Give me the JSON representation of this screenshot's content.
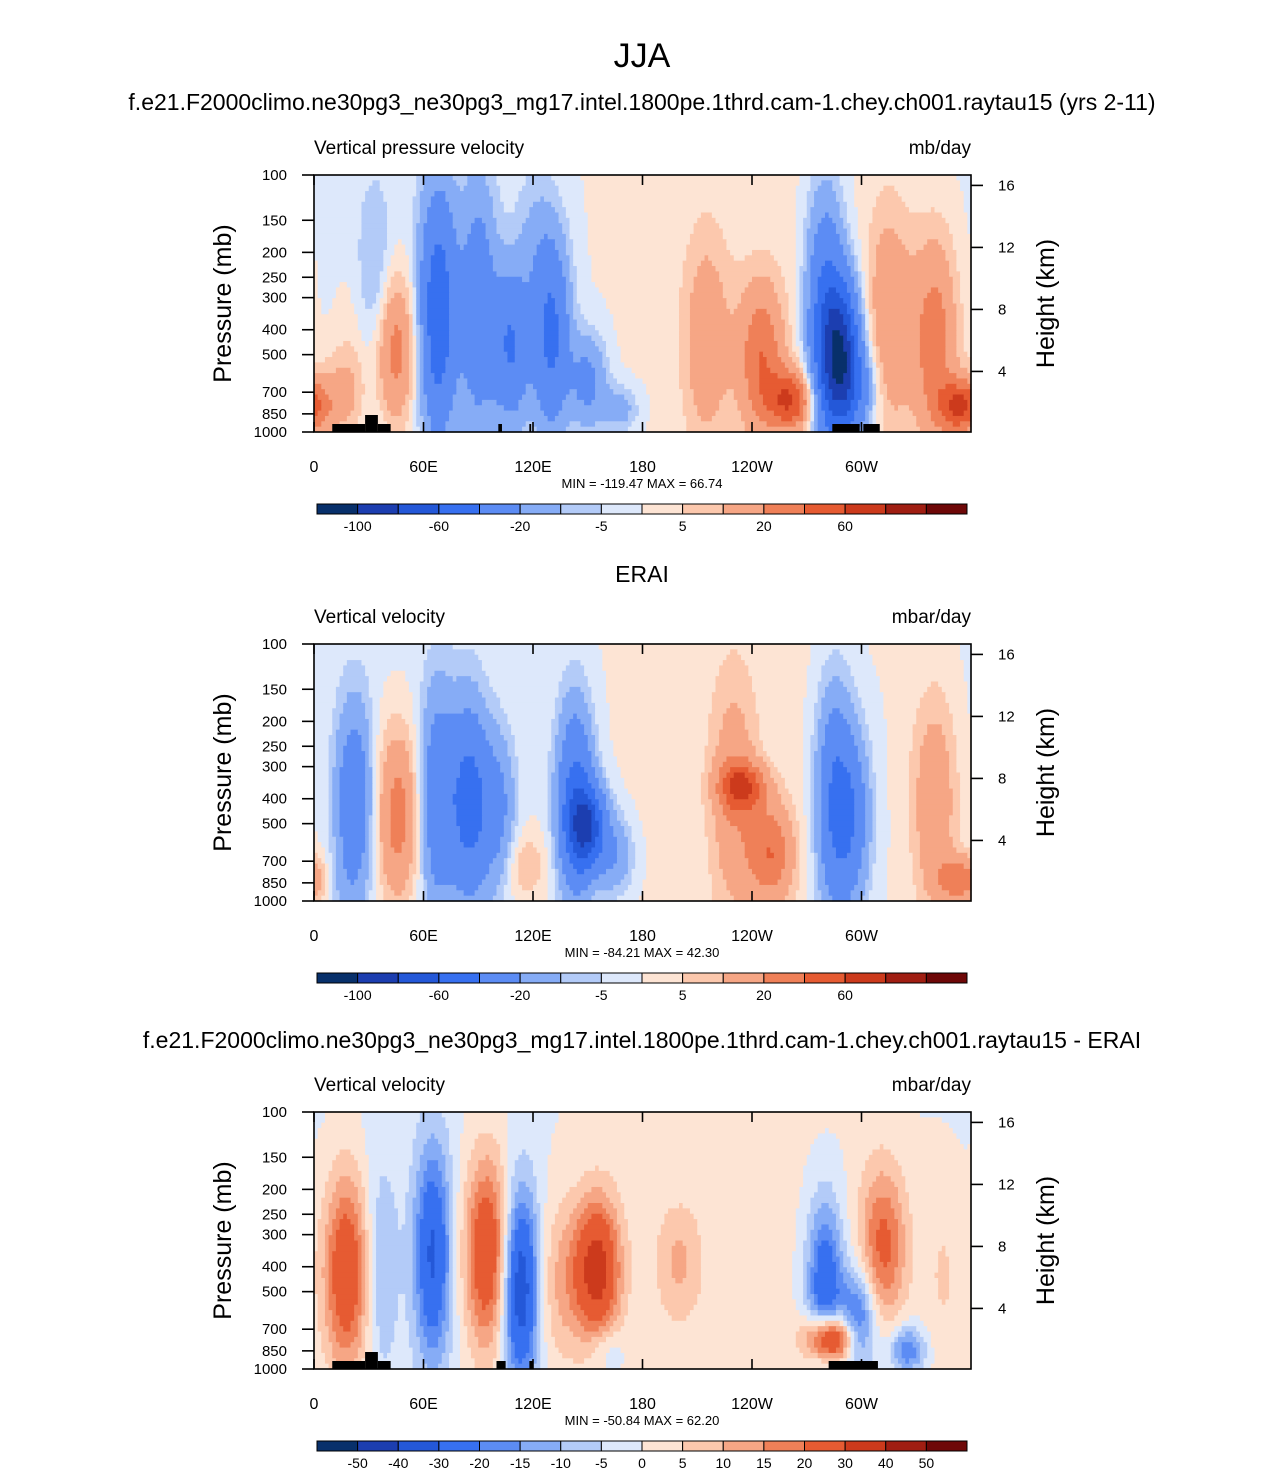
{
  "figure": {
    "season": "JJA",
    "panel_titles": [
      "f.e21.F2000climo.ne30pg3_ne30pg3_mg17.intel.1800pe.1thrd.cam-1.chey.ch001.raytau15 (yrs 2-11)",
      "ERAI",
      "f.e21.F2000climo.ne30pg3_ne30pg3_mg17.intel.1800pe.1thrd.cam-1.chey.ch001.raytau15 - ERAI"
    ]
  },
  "chart_data": [
    {
      "type": "heatmap",
      "title": "f.e21.F2000climo.ne30pg3_ne30pg3_mg17.intel.1800pe.1thrd.cam-1.chey.ch001.raytau15 (yrs 2-11)",
      "left_label": "Vertical pressure velocity",
      "right_label": "mb/day",
      "ylabel": "Pressure (mb)",
      "ylabel_right": "Height (km)",
      "x_ticks": [
        "0",
        "60E",
        "120E",
        "180",
        "120W",
        "60W"
      ],
      "y_ticks": [
        "100",
        "150",
        "200",
        "250",
        "300",
        "400",
        "500",
        "700",
        "850",
        "1000"
      ],
      "y_right_ticks": [
        "16",
        "12",
        "8",
        "4"
      ],
      "xlim": [
        0,
        360
      ],
      "ylim": [
        1000,
        100
      ],
      "yscale": "log",
      "stats": "MIN = -119.47  MAX =  66.74",
      "colorbar_labels": [
        "-100",
        "-60",
        "-20",
        "-5",
        "5",
        "20",
        "60"
      ],
      "colorbar_label_positions": [
        1,
        3,
        5,
        7,
        9,
        11,
        13
      ],
      "colorbar_colors": [
        "#08306b",
        "#1c3eb0",
        "#2458d8",
        "#3770f0",
        "#5c8cf4",
        "#86acf6",
        "#b3cbf8",
        "#dde8fb",
        "#fde4d4",
        "#fcc8ad",
        "#f6a685",
        "#ef8058",
        "#e65b32",
        "#cc3a1c",
        "#a01e12",
        "#6e0808"
      ],
      "colorbar_bounds": [
        -100,
        -80,
        -60,
        -40,
        -20,
        -10,
        -5,
        0,
        5,
        10,
        20,
        30,
        40,
        50,
        60
      ],
      "features": [
        {
          "lon": 15,
          "p_top": 500,
          "p_bot": 1000,
          "value": 12
        },
        {
          "lon": 28,
          "p_top": 230,
          "p_bot": 900,
          "value": 8
        },
        {
          "lon": 33,
          "p_top": 160,
          "p_bot": 820,
          "value": -20
        },
        {
          "lon": 43,
          "p_top": 270,
          "p_bot": 850,
          "value": 28
        },
        {
          "lon": 68,
          "p_top": 140,
          "p_bot": 850,
          "value": -55
        },
        {
          "lon": 90,
          "p_top": 130,
          "p_bot": 850,
          "value": -32
        },
        {
          "lon": 108,
          "p_top": 260,
          "p_bot": 820,
          "value": -40
        },
        {
          "lon": 130,
          "p_top": 200,
          "p_bot": 850,
          "value": -45
        },
        {
          "lon": 150,
          "p_top": 450,
          "p_bot": 900,
          "value": -25
        },
        {
          "lon": 168,
          "p_top": 700,
          "p_bot": 950,
          "value": -14
        },
        {
          "lon": 215,
          "p_top": 200,
          "p_bot": 950,
          "value": 16
        },
        {
          "lon": 245,
          "p_top": 290,
          "p_bot": 920,
          "value": 28
        },
        {
          "lon": 262,
          "p_top": 600,
          "p_bot": 950,
          "value": 38
        },
        {
          "lon": 280,
          "p_top": 150,
          "p_bot": 950,
          "value": -45
        },
        {
          "lon": 289,
          "p_top": 300,
          "p_bot": 900,
          "value": -90
        },
        {
          "lon": 300,
          "p_top": 500,
          "p_bot": 950,
          "value": -20
        },
        {
          "lon": 315,
          "p_top": 150,
          "p_bot": 900,
          "value": 18
        },
        {
          "lon": 340,
          "p_top": 200,
          "p_bot": 950,
          "value": 26
        },
        {
          "lon": 355,
          "p_top": 650,
          "p_bot": 980,
          "value": 40
        },
        {
          "lon": 120,
          "p_top": 100,
          "p_bot": 300,
          "value": -8
        }
      ],
      "topography": [
        [
          10,
          28
        ],
        [
          28,
          35
        ],
        [
          35,
          42
        ],
        [
          101,
          103
        ],
        [
          118,
          119
        ],
        [
          284,
          299
        ],
        [
          301,
          310
        ]
      ]
    },
    {
      "type": "heatmap",
      "title": "ERAI",
      "left_label": "Vertical velocity",
      "right_label": "mbar/day",
      "ylabel": "Pressure (mb)",
      "ylabel_right": "Height (km)",
      "x_ticks": [
        "0",
        "60E",
        "120E",
        "180",
        "120W",
        "60W"
      ],
      "y_ticks": [
        "100",
        "150",
        "200",
        "250",
        "300",
        "400",
        "500",
        "700",
        "850",
        "1000"
      ],
      "y_right_ticks": [
        "16",
        "12",
        "8",
        "4"
      ],
      "xlim": [
        0,
        360
      ],
      "ylim": [
        1000,
        100
      ],
      "yscale": "log",
      "stats": "MIN = -84.21  MAX =  42.30",
      "colorbar_labels": [
        "-100",
        "-60",
        "-20",
        "-5",
        "5",
        "20",
        "60"
      ],
      "colorbar_label_positions": [
        1,
        3,
        5,
        7,
        9,
        11,
        13
      ],
      "colorbar_colors": [
        "#08306b",
        "#1c3eb0",
        "#2458d8",
        "#3770f0",
        "#5c8cf4",
        "#86acf6",
        "#b3cbf8",
        "#dde8fb",
        "#fde4d4",
        "#fcc8ad",
        "#f6a685",
        "#ef8058",
        "#e65b32",
        "#cc3a1c",
        "#a01e12",
        "#6e0808"
      ],
      "colorbar_bounds": [
        -100,
        -80,
        -60,
        -40,
        -20,
        -10,
        -5,
        0,
        5,
        10,
        20,
        30,
        40,
        50,
        60
      ],
      "features": [
        {
          "lon": 22,
          "p_top": 200,
          "p_bot": 850,
          "value": -35
        },
        {
          "lon": 12,
          "p_top": 700,
          "p_bot": 1000,
          "value": -6
        },
        {
          "lon": 46,
          "p_top": 240,
          "p_bot": 900,
          "value": 26
        },
        {
          "lon": 68,
          "p_top": 180,
          "p_bot": 900,
          "value": -35
        },
        {
          "lon": 85,
          "p_top": 200,
          "p_bot": 850,
          "value": -45
        },
        {
          "lon": 100,
          "p_top": 250,
          "p_bot": 800,
          "value": -25
        },
        {
          "lon": 115,
          "p_top": 550,
          "p_bot": 950,
          "value": 10
        },
        {
          "lon": 143,
          "p_top": 200,
          "p_bot": 850,
          "value": -45
        },
        {
          "lon": 150,
          "p_top": 380,
          "p_bot": 700,
          "value": -65
        },
        {
          "lon": 165,
          "p_top": 500,
          "p_bot": 900,
          "value": -18
        },
        {
          "lon": 230,
          "p_top": 160,
          "p_bot": 950,
          "value": 16
        },
        {
          "lon": 235,
          "p_top": 300,
          "p_bot": 430,
          "value": 32
        },
        {
          "lon": 250,
          "p_top": 450,
          "p_bot": 950,
          "value": 28
        },
        {
          "lon": 285,
          "p_top": 180,
          "p_bot": 950,
          "value": -38
        },
        {
          "lon": 295,
          "p_top": 250,
          "p_bot": 900,
          "value": -30
        },
        {
          "lon": 340,
          "p_top": 180,
          "p_bot": 950,
          "value": 18
        },
        {
          "lon": 355,
          "p_top": 700,
          "p_bot": 980,
          "value": 26
        }
      ],
      "topography": []
    },
    {
      "type": "heatmap",
      "title": "f.e21.F2000climo.ne30pg3_ne30pg3_mg17.intel.1800pe.1thrd.cam-1.chey.ch001.raytau15 - ERAI",
      "left_label": "Vertical velocity",
      "right_label": "mbar/day",
      "ylabel": "Pressure (mb)",
      "ylabel_right": "Height (km)",
      "x_ticks": [
        "0",
        "60E",
        "120E",
        "180",
        "120W",
        "60W"
      ],
      "y_ticks": [
        "100",
        "150",
        "200",
        "250",
        "300",
        "400",
        "500",
        "700",
        "850",
        "1000"
      ],
      "y_right_ticks": [
        "16",
        "12",
        "8",
        "4"
      ],
      "xlim": [
        0,
        360
      ],
      "ylim": [
        1000,
        100
      ],
      "yscale": "log",
      "stats": "MIN = -50.84  MAX =  62.20",
      "colorbar_labels": [
        "-50",
        "-40",
        "-30",
        "-20",
        "-15",
        "-10",
        "-5",
        "0",
        "5",
        "10",
        "15",
        "20",
        "30",
        "40",
        "50"
      ],
      "colorbar_label_positions": [
        1,
        2,
        3,
        4,
        5,
        6,
        7,
        8,
        9,
        10,
        11,
        12,
        13,
        14,
        15
      ],
      "colorbar_colors": [
        "#08306b",
        "#1c3eb0",
        "#2458d8",
        "#3770f0",
        "#5c8cf4",
        "#86acf6",
        "#b3cbf8",
        "#dde8fb",
        "#fde4d4",
        "#fcc8ad",
        "#f6a685",
        "#ef8058",
        "#e65b32",
        "#cc3a1c",
        "#a01e12",
        "#6e0808"
      ],
      "colorbar_bounds": [
        -50,
        -40,
        -30,
        -20,
        -15,
        -10,
        -5,
        0,
        5,
        10,
        15,
        20,
        30,
        40,
        50
      ],
      "features": [
        {
          "lon": 18,
          "p_top": 200,
          "p_bot": 900,
          "value": 30
        },
        {
          "lon": 36,
          "p_top": 180,
          "p_bot": 900,
          "value": -10
        },
        {
          "lon": 65,
          "p_top": 160,
          "p_bot": 800,
          "value": -30
        },
        {
          "lon": 95,
          "p_top": 170,
          "p_bot": 750,
          "value": 30
        },
        {
          "lon": 113,
          "p_top": 230,
          "p_bot": 1000,
          "value": -38
        },
        {
          "lon": 135,
          "p_top": 250,
          "p_bot": 850,
          "value": 10
        },
        {
          "lon": 155,
          "p_top": 240,
          "p_bot": 700,
          "value": 35
        },
        {
          "lon": 160,
          "p_top": 750,
          "p_bot": 950,
          "value": -8
        },
        {
          "lon": 200,
          "p_top": 250,
          "p_bot": 600,
          "value": 10
        },
        {
          "lon": 280,
          "p_top": 250,
          "p_bot": 900,
          "value": -28
        },
        {
          "lon": 283,
          "p_top": 650,
          "p_bot": 900,
          "value": 45
        },
        {
          "lon": 298,
          "p_top": 450,
          "p_bot": 950,
          "value": -25
        },
        {
          "lon": 312,
          "p_top": 180,
          "p_bot": 600,
          "value": 22
        },
        {
          "lon": 325,
          "p_top": 750,
          "p_bot": 950,
          "value": -20
        },
        {
          "lon": 345,
          "p_top": 200,
          "p_bot": 950,
          "value": 6
        }
      ],
      "topography": [
        [
          10,
          28
        ],
        [
          28,
          35
        ],
        [
          35,
          42
        ],
        [
          100,
          105
        ],
        [
          118,
          120
        ],
        [
          282,
          309
        ]
      ]
    }
  ]
}
